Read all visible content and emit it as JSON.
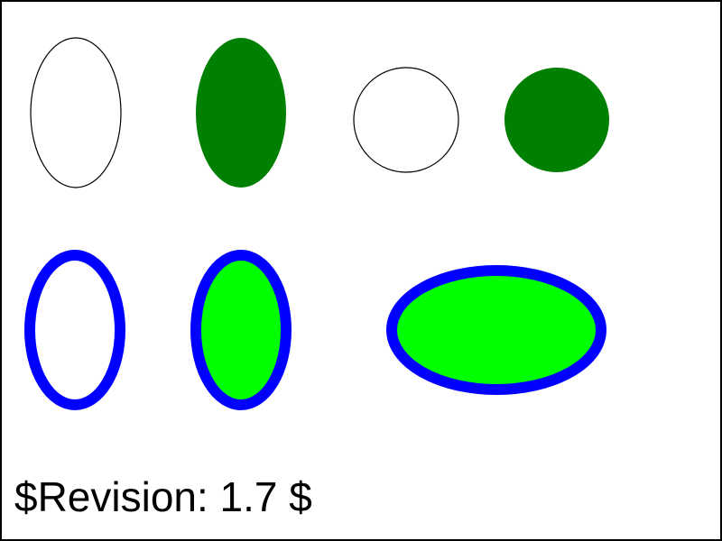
{
  "footer": {
    "revision_text": "$Revision: 1.7 $"
  },
  "shapes": [
    {
      "name": "outline-ellipse-tall",
      "kind": "ellipse",
      "fill": "none",
      "stroke": "#000000",
      "stroke_style": "thin"
    },
    {
      "name": "filled-ellipse-tall",
      "kind": "ellipse",
      "fill": "#008000",
      "stroke": "none",
      "stroke_style": "none"
    },
    {
      "name": "outline-circle",
      "kind": "circle",
      "fill": "none",
      "stroke": "#000000",
      "stroke_style": "thin"
    },
    {
      "name": "filled-circle",
      "kind": "circle",
      "fill": "#008000",
      "stroke": "none",
      "stroke_style": "none"
    },
    {
      "name": "blue-ring-ellipse",
      "kind": "ellipse",
      "fill": "none",
      "stroke": "#0000ff",
      "stroke_style": "thick"
    },
    {
      "name": "blue-ring-lime-ellipse",
      "kind": "ellipse",
      "fill": "#00ff00",
      "stroke": "#0000ff",
      "stroke_style": "thick"
    },
    {
      "name": "blue-ring-lime-ellipse-wide",
      "kind": "ellipse",
      "fill": "#00ff00",
      "stroke": "#0000ff",
      "stroke_style": "thick"
    }
  ],
  "colors": {
    "border": "#000000",
    "dark_green": "#008000",
    "lime": "#00ff00",
    "blue": "#0000ff"
  }
}
